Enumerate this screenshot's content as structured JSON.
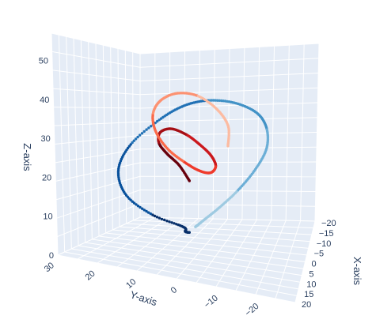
{
  "chart_data": {
    "type": "scatter3d",
    "title": "",
    "xlabel": "X-axis",
    "ylabel": "Y-axis",
    "zlabel": "Z-axis",
    "x_ticks": [
      "20",
      "15",
      "10",
      "5",
      "0",
      "−5",
      "−10",
      "−15",
      "−20"
    ],
    "y_ticks": [
      "30",
      "20",
      "10",
      "0",
      "−10",
      "−20"
    ],
    "z_ticks": [
      "0",
      "10",
      "20",
      "30",
      "40",
      "50"
    ],
    "xlim": [
      -20,
      20
    ],
    "ylim": [
      -28,
      30
    ],
    "zlim": [
      0,
      57
    ],
    "grid": true,
    "legend": "none",
    "description_note": "Two Lorenz-attractor-like trajectories",
    "series": [
      {
        "colorscale": "Blues",
        "marker": "points",
        "path": [
          [
            0,
            0,
            2
          ],
          [
            2,
            0,
            3
          ],
          [
            6,
            -2,
            6
          ],
          [
            12,
            4,
            12
          ],
          [
            16,
            10,
            20
          ],
          [
            14,
            14,
            28
          ],
          [
            8,
            14,
            35
          ],
          [
            0,
            10,
            41
          ],
          [
            -6,
            6,
            44
          ],
          [
            -12,
            2,
            44
          ],
          [
            -16,
            -4,
            42
          ],
          [
            -18,
            -10,
            38
          ],
          [
            -17,
            -14,
            33
          ],
          [
            -14,
            -16,
            27
          ],
          [
            -10,
            -15,
            21
          ],
          [
            -6,
            -12,
            15
          ],
          [
            -3,
            -8,
            10
          ],
          [
            -1,
            -4,
            6
          ],
          [
            0,
            -2,
            4
          ]
        ]
      },
      {
        "colorscale": "Reds",
        "marker": "points",
        "path": [
          [
            0,
            0,
            20
          ],
          [
            2,
            2,
            26
          ],
          [
            5,
            4,
            31
          ],
          [
            6,
            6,
            35
          ],
          [
            4,
            7,
            38
          ],
          [
            0,
            6,
            38
          ],
          [
            -3,
            3,
            35
          ],
          [
            -5,
            0,
            31
          ],
          [
            -6,
            -3,
            27
          ],
          [
            -4,
            -6,
            24
          ],
          [
            0,
            -7,
            23
          ],
          [
            4,
            -6,
            25
          ],
          [
            7,
            -3,
            29
          ],
          [
            9,
            1,
            34
          ],
          [
            9,
            5,
            40
          ],
          [
            6,
            8,
            45
          ],
          [
            1,
            9,
            48
          ],
          [
            -4,
            7,
            49
          ],
          [
            -8,
            3,
            47
          ],
          [
            -10,
            -2,
            42
          ],
          [
            -10,
            -6,
            36
          ],
          [
            -7,
            -8,
            30
          ]
        ]
      }
    ]
  }
}
